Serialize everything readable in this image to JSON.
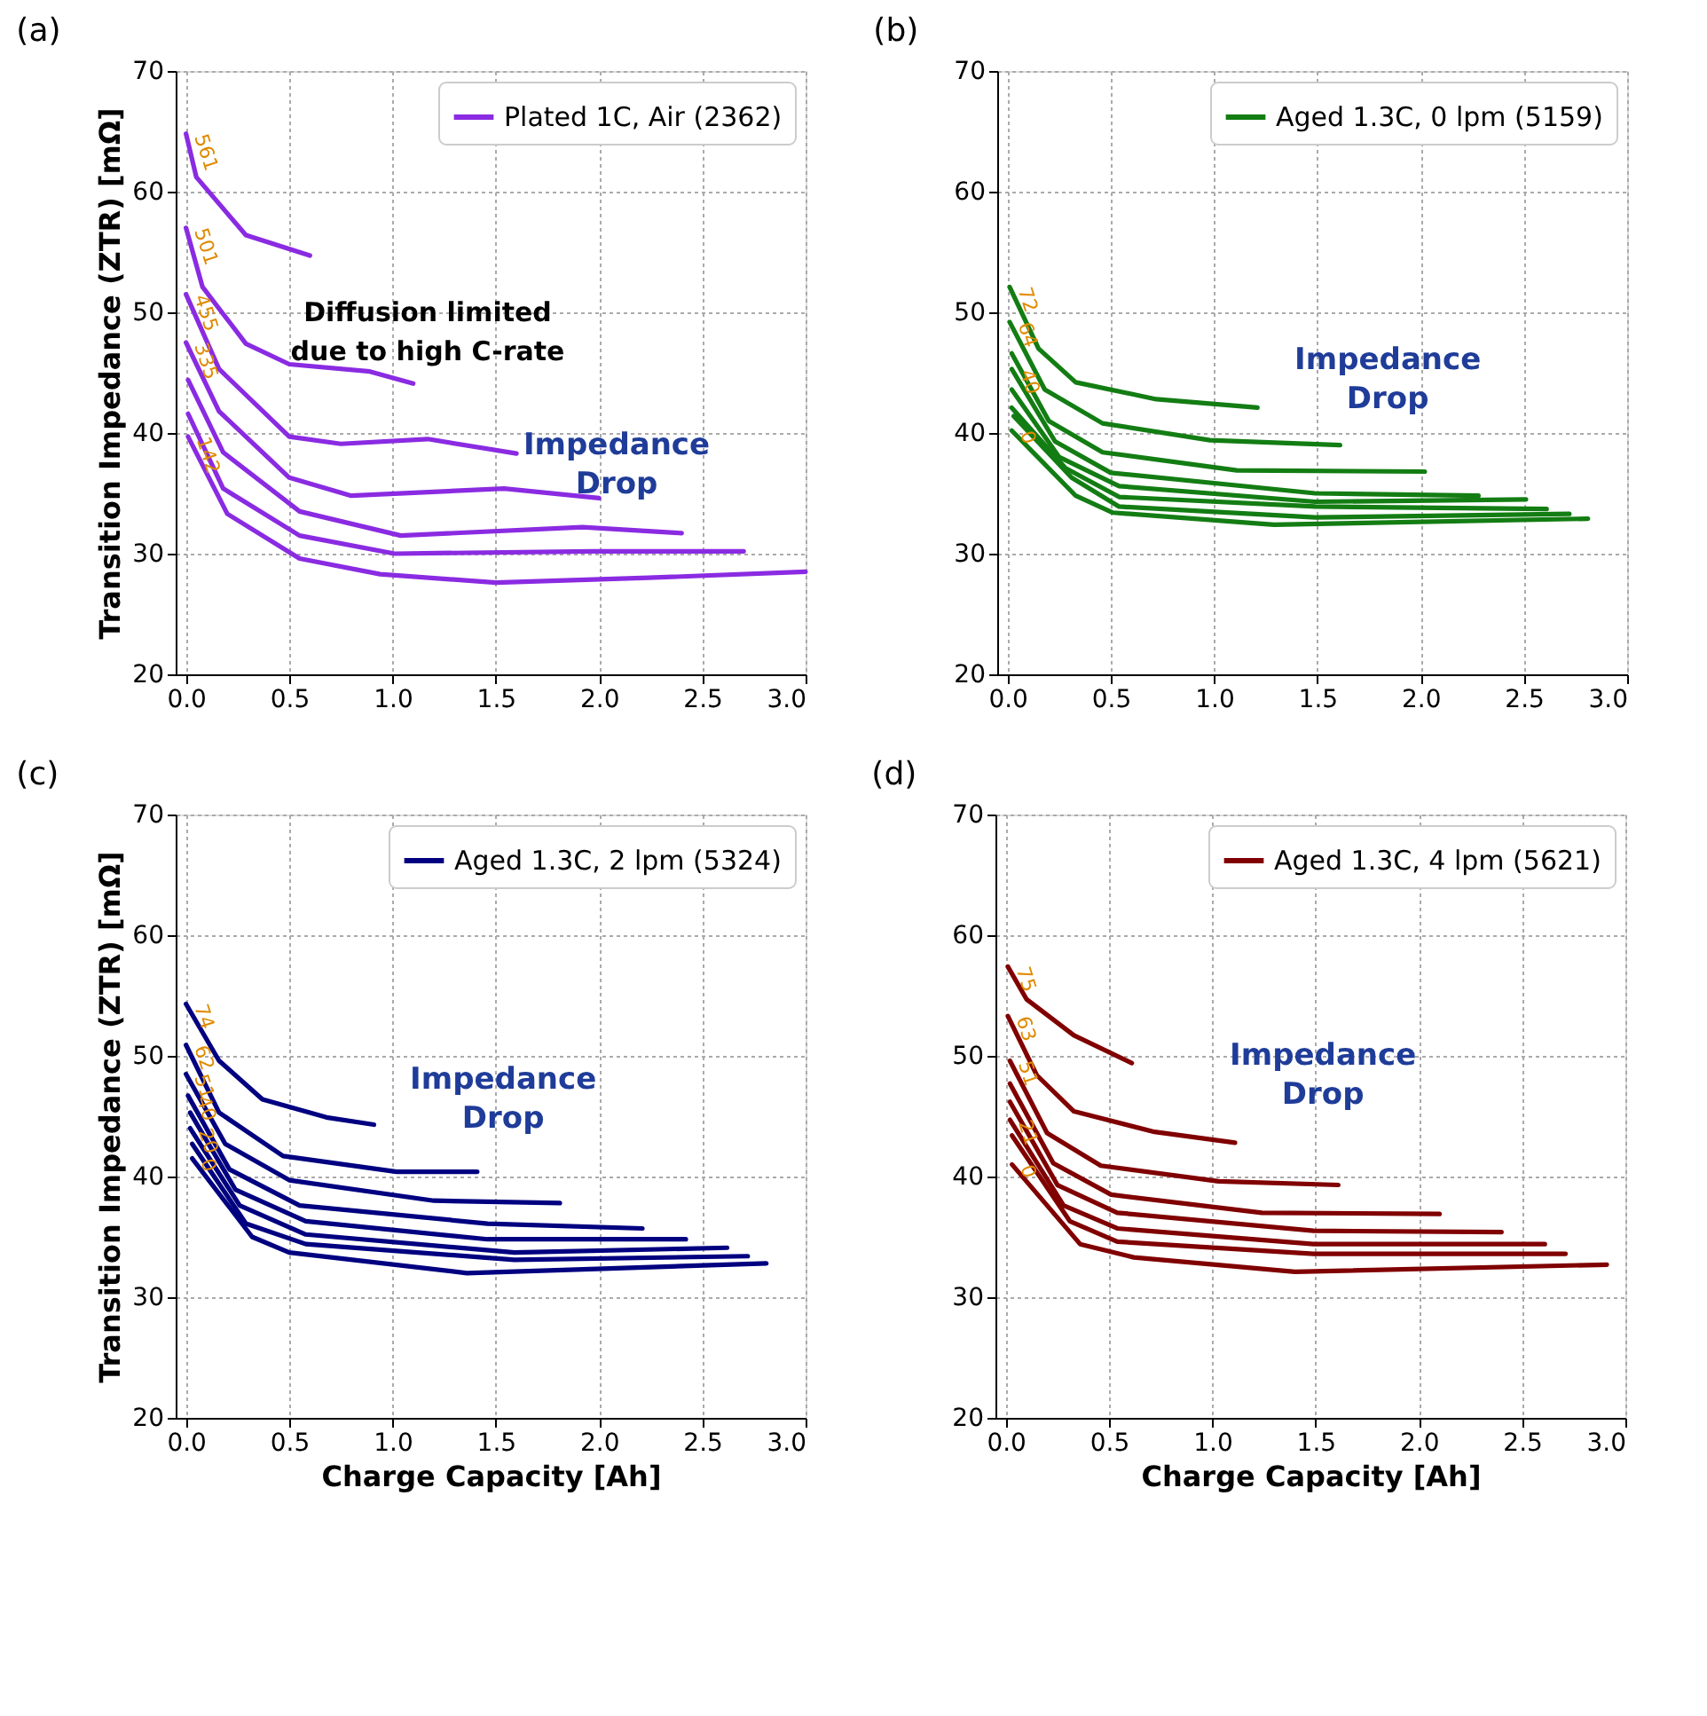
{
  "chart_data": [
    {
      "type": "line",
      "title": "(a)",
      "ylabel": "Transition Impedance (ZTR) [mΩ]",
      "xlim": [
        -0.05,
        3.0
      ],
      "ylim": [
        20,
        70
      ],
      "xticks": [
        {
          "value": 0,
          "label": "0.0"
        },
        0.5,
        {
          "value": 1,
          "label": "1.0"
        },
        1.5,
        {
          "value": 2,
          "label": "2.0"
        },
        2.5,
        {
          "value": 3,
          "label": "3.0"
        }
      ],
      "yticks": [
        20,
        30,
        40,
        50,
        60,
        70
      ],
      "grid": true,
      "legend": "top right",
      "series": [
        {
          "name": "Plated 1C, Air (2362)",
          "color": "#8a2be2",
          "x": [
            0.0,
            0.05,
            0.29,
            0.6
          ],
          "values": [
            64.8,
            61.2,
            56.4,
            54.7
          ]
        },
        {
          "color": "#8a2be2",
          "x": [
            0.0,
            0.08,
            0.29,
            0.5,
            0.89,
            1.1
          ],
          "values": [
            57.0,
            52.1,
            47.4,
            45.7,
            45.1,
            44.1
          ]
        },
        {
          "color": "#8a2be2",
          "x": [
            0.0,
            0.16,
            0.5,
            0.75,
            1.17,
            1.6
          ],
          "values": [
            51.5,
            45.3,
            39.7,
            39.1,
            39.5,
            38.3
          ]
        },
        {
          "color": "#8a2be2",
          "x": [
            0.0,
            0.16,
            0.5,
            0.8,
            1.54,
            2.0
          ],
          "values": [
            47.5,
            41.8,
            36.3,
            34.8,
            35.4,
            34.6
          ]
        },
        {
          "color": "#8a2be2",
          "x": [
            0.01,
            0.18,
            0.55,
            1.04,
            1.92,
            2.4
          ],
          "values": [
            44.4,
            38.4,
            33.5,
            31.5,
            32.2,
            31.7
          ]
        },
        {
          "color": "#8a2be2",
          "x": [
            0.01,
            0.18,
            0.55,
            1.01,
            1.97,
            2.7
          ],
          "values": [
            41.6,
            35.4,
            31.5,
            30.0,
            30.2,
            30.2
          ]
        },
        {
          "color": "#8a2be2",
          "x": [
            0.01,
            0.2,
            0.55,
            0.94,
            1.5,
            2.24,
            3.0
          ],
          "values": [
            39.7,
            33.3,
            29.6,
            28.3,
            27.6,
            28.0,
            28.5
          ]
        }
      ],
      "annotations": [
        {
          "text": "561",
          "x": 0.0,
          "y": 64.8
        },
        {
          "text": "501",
          "x": 0.0,
          "y": 57.0
        },
        {
          "text": "455",
          "x": 0.0,
          "y": 51.5
        },
        {
          "text": "335",
          "x": 0.0,
          "y": 47.5
        },
        {
          "text": "142",
          "x": 0.01,
          "y": 39.7
        },
        "Diffusion limited due to high C-rate",
        "Impedance Drop"
      ]
    },
    {
      "type": "line",
      "title": "(b)",
      "xlim": [
        -0.05,
        3.0
      ],
      "ylim": [
        20,
        70
      ],
      "xticks": [
        {
          "value": 0,
          "label": "0.0"
        },
        0.5,
        {
          "value": 1,
          "label": "1.0"
        },
        1.5,
        {
          "value": 2,
          "label": "2.0"
        },
        2.5,
        {
          "value": 3,
          "label": "3.0"
        }
      ],
      "yticks": [
        20,
        30,
        40,
        50,
        60,
        70
      ],
      "grid": true,
      "legend": "top right",
      "series": [
        {
          "name": "Aged 1.3C, 0 lpm (5159)",
          "color": "#137d13",
          "x": [
            0.01,
            0.15,
            0.33,
            0.72,
            1.21
          ],
          "values": [
            52.1,
            47.0,
            44.2,
            42.8,
            42.1
          ]
        },
        {
          "color": "#137d13",
          "x": [
            0.01,
            0.18,
            0.46,
            0.98,
            1.61
          ],
          "values": [
            49.2,
            43.6,
            40.8,
            39.4,
            39.0
          ]
        },
        {
          "color": "#137d13",
          "x": [
            0.02,
            0.2,
            0.46,
            1.11,
            2.02
          ],
          "values": [
            46.6,
            41.0,
            38.4,
            36.9,
            36.8
          ]
        },
        {
          "color": "#137d13",
          "x": [
            0.02,
            0.23,
            0.5,
            1.49,
            2.28
          ],
          "values": [
            45.3,
            39.3,
            36.7,
            35.0,
            34.8
          ]
        },
        {
          "color": "#137d13",
          "x": [
            0.02,
            0.25,
            0.54,
            1.49,
            2.51
          ],
          "values": [
            43.6,
            38.0,
            35.6,
            34.3,
            34.5
          ]
        },
        {
          "color": "#137d13",
          "x": [
            0.02,
            0.28,
            0.54,
            1.49,
            2.61
          ],
          "values": [
            42.1,
            37.1,
            34.7,
            33.9,
            33.7
          ]
        },
        {
          "color": "#137d13",
          "x": [
            0.03,
            0.31,
            0.54,
            1.49,
            2.72
          ],
          "values": [
            41.4,
            36.3,
            33.9,
            33.0,
            33.3
          ]
        },
        {
          "color": "#137d13",
          "x": [
            0.02,
            0.33,
            0.51,
            1.29,
            2.81
          ],
          "values": [
            40.2,
            34.8,
            33.4,
            32.4,
            32.9
          ]
        }
      ],
      "annotations": [
        {
          "text": "72",
          "x": 0.01,
          "y": 52.1
        },
        {
          "text": "64",
          "x": 0.01,
          "y": 49.2
        },
        {
          "text": "40",
          "x": 0.02,
          "y": 45.3
        },
        {
          "text": "0",
          "x": 0.02,
          "y": 40.2
        },
        "Impedance Drop"
      ]
    },
    {
      "type": "line",
      "title": "(c)",
      "xlabel": "Charge Capacity [Ah]",
      "ylabel": "Transition Impedance (ZTR) [mΩ]",
      "xlim": [
        -0.05,
        3.0
      ],
      "ylim": [
        20,
        70
      ],
      "xticks": [
        {
          "value": 0,
          "label": "0.0"
        },
        0.5,
        {
          "value": 1,
          "label": "1.0"
        },
        1.5,
        {
          "value": 2,
          "label": "2.0"
        },
        2.5,
        {
          "value": 3,
          "label": "3.0"
        }
      ],
      "yticks": [
        20,
        30,
        40,
        50,
        60,
        70
      ],
      "grid": true,
      "legend": "top right",
      "series": [
        {
          "name": "Aged 1.3C, 2 lpm (5324)",
          "color": "#000080",
          "x": [
            0.0,
            0.16,
            0.37,
            0.68,
            0.91
          ],
          "values": [
            54.3,
            49.6,
            46.4,
            44.9,
            44.3
          ]
        },
        {
          "color": "#000080",
          "x": [
            0.0,
            0.16,
            0.47,
            1.02,
            1.41
          ],
          "values": [
            50.9,
            45.3,
            41.7,
            40.4,
            40.4
          ]
        },
        {
          "color": "#000080",
          "x": [
            0.0,
            0.19,
            0.5,
            1.2,
            1.81
          ],
          "values": [
            48.5,
            42.7,
            39.7,
            38.0,
            37.8
          ]
        },
        {
          "color": "#000080",
          "x": [
            0.01,
            0.21,
            0.55,
            1.46,
            2.21
          ],
          "values": [
            46.7,
            40.6,
            37.6,
            36.1,
            35.7
          ]
        },
        {
          "color": "#000080",
          "x": [
            0.02,
            0.24,
            0.58,
            1.46,
            2.42
          ],
          "values": [
            45.3,
            38.9,
            36.3,
            34.8,
            34.8
          ]
        },
        {
          "color": "#000080",
          "x": [
            0.02,
            0.26,
            0.58,
            1.59,
            2.62
          ],
          "values": [
            44.0,
            37.6,
            35.2,
            33.7,
            34.1
          ]
        },
        {
          "color": "#000080",
          "x": [
            0.03,
            0.29,
            0.58,
            1.59,
            2.72
          ],
          "values": [
            42.7,
            36.1,
            34.4,
            33.1,
            33.4
          ]
        },
        {
          "color": "#000080",
          "x": [
            0.03,
            0.32,
            0.5,
            1.36,
            2.81
          ],
          "values": [
            41.5,
            35.0,
            33.7,
            32.0,
            32.8
          ]
        }
      ],
      "annotations": [
        {
          "text": "74",
          "x": 0.0,
          "y": 54.3
        },
        {
          "text": "62",
          "x": 0.0,
          "y": 50.9
        },
        {
          "text": "51",
          "x": 0.0,
          "y": 48.5
        },
        {
          "text": "40",
          "x": 0.01,
          "y": 46.7
        },
        {
          "text": "20",
          "x": 0.02,
          "y": 44.0
        },
        {
          "text": "0",
          "x": 0.03,
          "y": 41.5
        },
        "Impedance Drop"
      ]
    },
    {
      "type": "line",
      "title": "(d)",
      "xlabel": "Charge Capacity [Ah]",
      "xlim": [
        -0.05,
        3.0
      ],
      "ylim": [
        20,
        70
      ],
      "xticks": [
        {
          "value": 0,
          "label": "0.0"
        },
        0.5,
        {
          "value": 1,
          "label": "1.0"
        },
        1.5,
        {
          "value": 2,
          "label": "2.0"
        },
        2.5,
        {
          "value": 3,
          "label": "3.0"
        }
      ],
      "yticks": [
        20,
        30,
        40,
        50,
        60,
        70
      ],
      "grid": true,
      "legend": "top right",
      "series": [
        {
          "name": "Aged 1.3C, 4 lpm (5621)",
          "color": "#800000",
          "x": [
            0.01,
            0.1,
            0.33,
            0.61
          ],
          "values": [
            57.4,
            54.7,
            51.7,
            49.4
          ]
        },
        {
          "color": "#800000",
          "x": [
            0.01,
            0.15,
            0.33,
            0.72,
            1.11
          ],
          "values": [
            53.3,
            48.4,
            45.4,
            43.7,
            42.8
          ]
        },
        {
          "color": "#800000",
          "x": [
            0.02,
            0.2,
            0.46,
            1.03,
            1.61
          ],
          "values": [
            49.6,
            43.6,
            40.9,
            39.6,
            39.3
          ]
        },
        {
          "color": "#800000",
          "x": [
            0.02,
            0.23,
            0.51,
            1.24,
            2.1
          ],
          "values": [
            47.7,
            41.1,
            38.5,
            37.0,
            36.9
          ]
        },
        {
          "color": "#800000",
          "x": [
            0.02,
            0.25,
            0.54,
            1.49,
            2.4
          ],
          "values": [
            46.2,
            39.3,
            37.0,
            35.5,
            35.4
          ]
        },
        {
          "color": "#800000",
          "x": [
            0.02,
            0.28,
            0.54,
            1.49,
            2.61
          ],
          "values": [
            44.7,
            37.6,
            35.7,
            34.4,
            34.4
          ]
        },
        {
          "color": "#800000",
          "x": [
            0.03,
            0.31,
            0.54,
            1.49,
            2.71
          ],
          "values": [
            43.4,
            36.3,
            34.6,
            33.6,
            33.6
          ]
        },
        {
          "color": "#800000",
          "x": [
            0.03,
            0.36,
            0.62,
            1.4,
            2.91
          ],
          "values": [
            41.0,
            34.4,
            33.3,
            32.1,
            32.7
          ]
        }
      ],
      "annotations": [
        {
          "text": "75",
          "x": 0.01,
          "y": 57.4
        },
        {
          "text": "63",
          "x": 0.01,
          "y": 53.3
        },
        {
          "text": "51",
          "x": 0.02,
          "y": 49.6
        },
        {
          "text": "21",
          "x": 0.02,
          "y": 44.7
        },
        {
          "text": "0",
          "x": 0.03,
          "y": 41.0
        },
        "Impedance Drop"
      ]
    }
  ]
}
